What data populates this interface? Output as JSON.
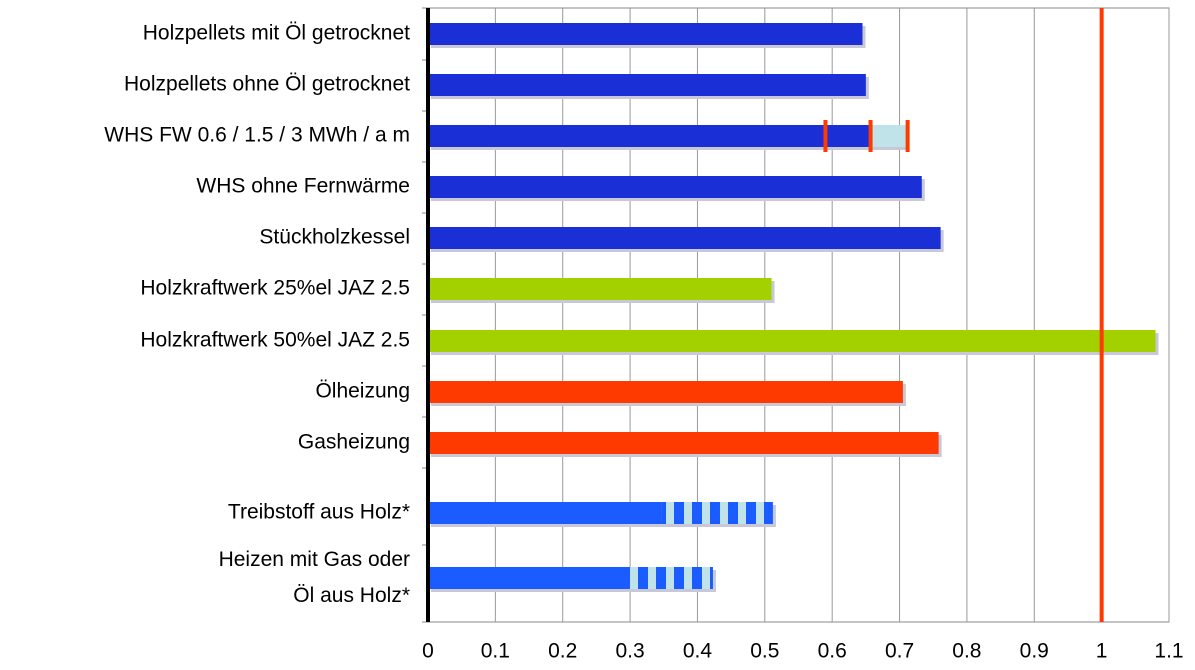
{
  "chart_data": {
    "type": "bar",
    "orientation": "horizontal",
    "categories": [
      "Holzpellets mit Öl getrocknet",
      "Holzpellets ohne Öl getrocknet",
      "WHS FW 0.6 / 1.5 / 3 MWh / a m",
      "WHS ohne Fernwärme",
      "Stückholzkessel",
      "Holzkraftwerk 25%el JAZ 2.5",
      "Holzkraftwerk 50%el JAZ 2.5",
      "Ölheizung",
      "Gasheizung",
      "Treibstoff aus Holz*",
      "Heizen mit Gas oder\nÖl aus Holz*"
    ],
    "series": [
      {
        "values": [
          0.645,
          0.65,
          0.655,
          0.733,
          0.761,
          0.51,
          1.08,
          0.705,
          0.758,
          0.346,
          0.3
        ],
        "colors": [
          "#1a2fd6",
          "#1a2fd6",
          "#1a2fd6",
          "#1a2fd6",
          "#1a2fd6",
          "#a3d100",
          "#a3d100",
          "#ff3a00",
          "#ff3a00",
          "#1a5cff",
          "#1a5cff"
        ]
      },
      {
        "values": [
          null,
          null,
          0.055,
          null,
          null,
          null,
          null,
          null,
          null,
          0.166,
          0.123
        ],
        "colors": [
          null,
          null,
          "#bfe3e8",
          null,
          null,
          null,
          null,
          null,
          null,
          "striped",
          "striped"
        ]
      }
    ],
    "markers": {
      "category": 2,
      "values": [
        0.59,
        0.657,
        0.712
      ],
      "color": "#ff3a00"
    },
    "reference_line": {
      "value": 1,
      "color": "#ff3a00"
    },
    "xlim": [
      0,
      1.1
    ],
    "xticks": [
      0,
      0.1,
      0.2,
      0.3,
      0.4,
      0.5,
      0.6,
      0.7,
      0.8,
      0.9,
      1,
      1.1
    ],
    "grid": true
  }
}
